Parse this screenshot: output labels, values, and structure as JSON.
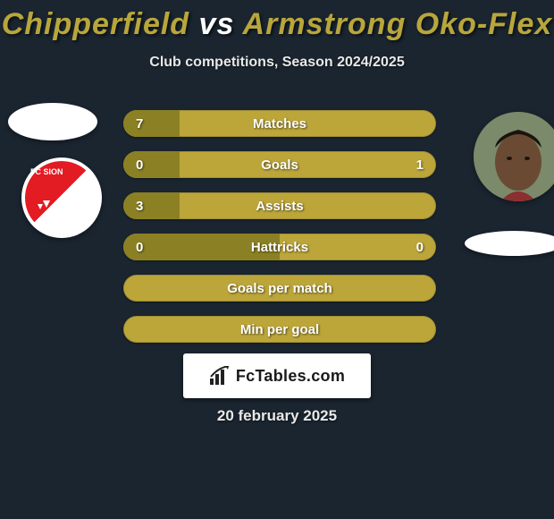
{
  "title": {
    "player1": "Chipperfield",
    "vs": "vs",
    "player2": "Armstrong Oko-Flex",
    "color1": "#b8a63c",
    "color_vs": "#ffffff",
    "color2": "#b8a63c"
  },
  "subtitle": "Club competitions, Season 2024/2025",
  "bars": {
    "left_color": "#8b8024",
    "right_color": "#bca63a",
    "neutral_color": "#bca63a",
    "rows": [
      {
        "label": "Matches",
        "left": "7",
        "right": "",
        "left_pct": 18,
        "right_pct": 82,
        "show_right": false
      },
      {
        "label": "Goals",
        "left": "0",
        "right": "1",
        "left_pct": 18,
        "right_pct": 82,
        "show_right": true
      },
      {
        "label": "Assists",
        "left": "3",
        "right": "",
        "left_pct": 18,
        "right_pct": 82,
        "show_right": false
      },
      {
        "label": "Hattricks",
        "left": "0",
        "right": "0",
        "left_pct": 50,
        "right_pct": 50,
        "show_right": true
      },
      {
        "label": "Goals per match",
        "left": "",
        "right": "",
        "left_pct": 0,
        "right_pct": 100,
        "show_right": false
      },
      {
        "label": "Min per goal",
        "left": "",
        "right": "",
        "left_pct": 0,
        "right_pct": 100,
        "show_right": false
      }
    ]
  },
  "watermark": "FcTables.com",
  "date": "20 february 2025",
  "club_left": "FC SION"
}
